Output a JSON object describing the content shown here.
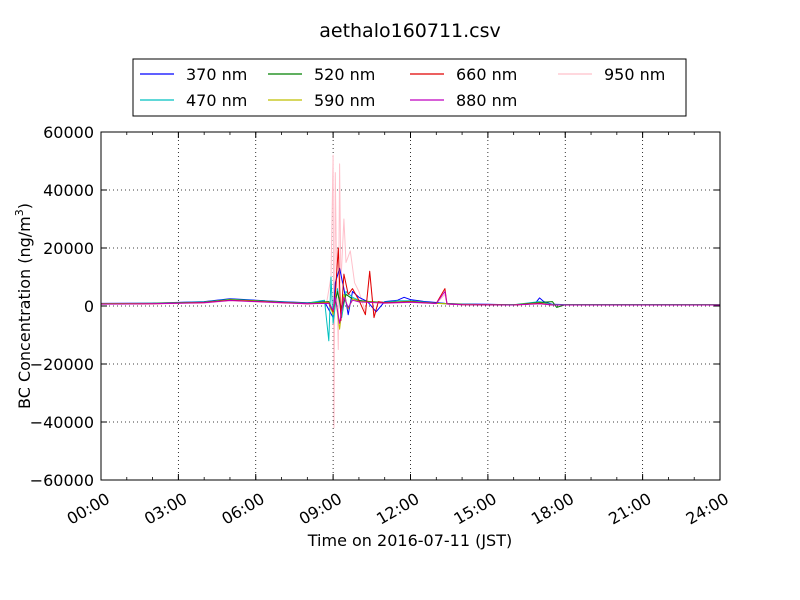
{
  "chart_data": {
    "type": "line",
    "title": "aethalo160711.csv",
    "xlabel": "Time on 2016-07-11 (JST)",
    "ylabel": "BC Concentration (ng/m",
    "ylabel_sup": "3",
    "ylabel_close": ")",
    "xlim": [
      "2016-07-11 00:00",
      "2016-07-12 00:00"
    ],
    "ylim": [
      -60000,
      60000
    ],
    "x_ticks": [
      "00:00",
      "03:00",
      "06:00",
      "09:00",
      "12:00",
      "15:00",
      "18:00",
      "21:00",
      "24:00"
    ],
    "y_ticks": [
      "60000",
      "40000",
      "20000",
      "0",
      "−20000",
      "−40000",
      "−60000"
    ],
    "grid": true,
    "legend_placement": "top-center",
    "series": [
      {
        "name": "370 nm",
        "color": "#0000ff",
        "points": [
          [
            "00:00",
            900
          ],
          [
            "02:00",
            1000
          ],
          [
            "04:00",
            1500
          ],
          [
            "05:00",
            2500
          ],
          [
            "06:00",
            2000
          ],
          [
            "07:00",
            1500
          ],
          [
            "08:00",
            1100
          ],
          [
            "08:40",
            1500
          ],
          [
            "09:00",
            -4000
          ],
          [
            "09:05",
            8000
          ],
          [
            "09:15",
            13000
          ],
          [
            "09:25",
            6000
          ],
          [
            "09:35",
            -3000
          ],
          [
            "09:45",
            5000
          ],
          [
            "10:00",
            3000
          ],
          [
            "10:20",
            1500
          ],
          [
            "10:40",
            -2000
          ],
          [
            "11:00",
            1500
          ],
          [
            "11:30",
            2000
          ],
          [
            "11:45",
            3000
          ],
          [
            "12:00",
            2200
          ],
          [
            "12:30",
            1600
          ],
          [
            "13:00",
            1200
          ],
          [
            "13:20",
            900
          ],
          [
            "14:00",
            700
          ],
          [
            "15:00",
            600
          ],
          [
            "16:00",
            400
          ],
          [
            "16:30",
            600
          ],
          [
            "16:50",
            900
          ],
          [
            "17:00",
            2800
          ],
          [
            "17:10",
            1500
          ],
          [
            "17:30",
            600
          ],
          [
            "18:00",
            500
          ],
          [
            "20:00",
            500
          ],
          [
            "22:00",
            500
          ],
          [
            "24:00",
            400
          ]
        ]
      },
      {
        "name": "470 nm",
        "color": "#00c0c0",
        "points": [
          [
            "00:00",
            800
          ],
          [
            "02:00",
            950
          ],
          [
            "04:00",
            1400
          ],
          [
            "05:00",
            2300
          ],
          [
            "06:00",
            1900
          ],
          [
            "07:00",
            1400
          ],
          [
            "08:00",
            1000
          ],
          [
            "08:40",
            2000
          ],
          [
            "08:50",
            -12000
          ],
          [
            "08:55",
            10000
          ],
          [
            "09:00",
            -6000
          ],
          [
            "09:10",
            6000
          ],
          [
            "09:20",
            -4000
          ],
          [
            "09:30",
            5000
          ],
          [
            "09:45",
            3000
          ],
          [
            "10:00",
            2000
          ],
          [
            "10:20",
            1500
          ],
          [
            "11:00",
            1300
          ],
          [
            "11:30",
            1800
          ],
          [
            "12:00",
            1800
          ],
          [
            "13:00",
            1000
          ],
          [
            "14:00",
            600
          ],
          [
            "15:00",
            500
          ],
          [
            "16:00",
            400
          ],
          [
            "17:00",
            1500
          ],
          [
            "17:30",
            500
          ],
          [
            "18:00",
            400
          ],
          [
            "20:00",
            400
          ],
          [
            "22:00",
            400
          ],
          [
            "24:00",
            400
          ]
        ]
      },
      {
        "name": "520 nm",
        "color": "#008000",
        "points": [
          [
            "00:00",
            800
          ],
          [
            "02:00",
            900
          ],
          [
            "04:00",
            1300
          ],
          [
            "05:00",
            2200
          ],
          [
            "06:00",
            1800
          ],
          [
            "07:00",
            1300
          ],
          [
            "08:00",
            900
          ],
          [
            "08:50",
            1500
          ],
          [
            "09:00",
            -2000
          ],
          [
            "09:10",
            5000
          ],
          [
            "09:20",
            -1500
          ],
          [
            "09:30",
            4000
          ],
          [
            "09:45",
            2500
          ],
          [
            "10:00",
            1800
          ],
          [
            "11:00",
            1200
          ],
          [
            "12:00",
            1600
          ],
          [
            "13:00",
            900
          ],
          [
            "14:00",
            600
          ],
          [
            "15:00",
            500
          ],
          [
            "16:00",
            400
          ],
          [
            "17:00",
            1200
          ],
          [
            "17:30",
            1500
          ],
          [
            "17:40",
            -500
          ],
          [
            "18:00",
            400
          ],
          [
            "20:00",
            400
          ],
          [
            "22:00",
            400
          ],
          [
            "24:00",
            400
          ]
        ]
      },
      {
        "name": "590 nm",
        "color": "#bfbf00",
        "points": [
          [
            "00:00",
            750
          ],
          [
            "02:00",
            850
          ],
          [
            "04:00",
            1200
          ],
          [
            "05:00",
            2100
          ],
          [
            "06:00",
            1700
          ],
          [
            "07:00",
            1200
          ],
          [
            "08:00",
            850
          ],
          [
            "08:50",
            1200
          ],
          [
            "09:00",
            -3000
          ],
          [
            "09:05",
            3500
          ],
          [
            "09:15",
            -8000
          ],
          [
            "09:25",
            4000
          ],
          [
            "09:35",
            -1000
          ],
          [
            "09:45",
            2500
          ],
          [
            "10:00",
            1600
          ],
          [
            "11:00",
            1100
          ],
          [
            "12:00",
            1500
          ],
          [
            "13:00",
            900
          ],
          [
            "14:00",
            550
          ],
          [
            "15:00",
            450
          ],
          [
            "16:00",
            380
          ],
          [
            "17:00",
            1000
          ],
          [
            "17:30",
            400
          ],
          [
            "18:00",
            380
          ],
          [
            "20:00",
            380
          ],
          [
            "22:00",
            380
          ],
          [
            "24:00",
            380
          ]
        ]
      },
      {
        "name": "660 nm",
        "color": "#e00000",
        "points": [
          [
            "00:00",
            700
          ],
          [
            "02:00",
            800
          ],
          [
            "04:00",
            1200
          ],
          [
            "05:00",
            2000
          ],
          [
            "06:00",
            1600
          ],
          [
            "07:00",
            1200
          ],
          [
            "08:00",
            800
          ],
          [
            "08:50",
            1000
          ],
          [
            "09:00",
            -2000
          ],
          [
            "09:05",
            4000
          ],
          [
            "09:12",
            20000
          ],
          [
            "09:18",
            -5000
          ],
          [
            "09:25",
            11000
          ],
          [
            "09:35",
            4000
          ],
          [
            "09:45",
            6000
          ],
          [
            "10:00",
            2000
          ],
          [
            "10:15",
            -3000
          ],
          [
            "10:25",
            12000
          ],
          [
            "10:35",
            -4000
          ],
          [
            "10:45",
            1500
          ],
          [
            "11:00",
            1100
          ],
          [
            "12:00",
            1400
          ],
          [
            "13:00",
            900
          ],
          [
            "13:20",
            6000
          ],
          [
            "13:25",
            700
          ],
          [
            "14:00",
            500
          ],
          [
            "15:00",
            400
          ],
          [
            "16:00",
            350
          ],
          [
            "17:00",
            900
          ],
          [
            "17:30",
            350
          ],
          [
            "18:00",
            350
          ],
          [
            "20:00",
            350
          ],
          [
            "22:00",
            350
          ],
          [
            "24:00",
            350
          ]
        ]
      },
      {
        "name": "880 nm",
        "color": "#bf00bf",
        "points": [
          [
            "00:00",
            650
          ],
          [
            "02:00",
            750
          ],
          [
            "04:00",
            1100
          ],
          [
            "05:00",
            1900
          ],
          [
            "06:00",
            1500
          ],
          [
            "07:00",
            1100
          ],
          [
            "08:00",
            750
          ],
          [
            "08:50",
            900
          ],
          [
            "09:00",
            -1500
          ],
          [
            "09:05",
            3000
          ],
          [
            "09:15",
            -6000
          ],
          [
            "09:25",
            3000
          ],
          [
            "09:35",
            -500
          ],
          [
            "09:45",
            2000
          ],
          [
            "10:00",
            1400
          ],
          [
            "11:00",
            1000
          ],
          [
            "12:00",
            1300
          ],
          [
            "13:00",
            850
          ],
          [
            "13:20",
            5000
          ],
          [
            "13:25",
            700
          ],
          [
            "14:00",
            450
          ],
          [
            "15:00",
            380
          ],
          [
            "16:00",
            330
          ],
          [
            "17:00",
            800
          ],
          [
            "17:30",
            330
          ],
          [
            "18:00",
            330
          ],
          [
            "20:00",
            330
          ],
          [
            "22:00",
            330
          ],
          [
            "24:00",
            330
          ]
        ]
      },
      {
        "name": "950 nm",
        "color": "#ffc0cb",
        "points": [
          [
            "00:00",
            600
          ],
          [
            "02:00",
            700
          ],
          [
            "04:00",
            1000
          ],
          [
            "05:00",
            1800
          ],
          [
            "06:00",
            1400
          ],
          [
            "07:00",
            1000
          ],
          [
            "08:00",
            700
          ],
          [
            "08:45",
            1200
          ],
          [
            "08:55",
            10000
          ],
          [
            "09:00",
            52000
          ],
          [
            "09:02",
            -42000
          ],
          [
            "09:05",
            46000
          ],
          [
            "09:08",
            10000
          ],
          [
            "09:12",
            -15000
          ],
          [
            "09:15",
            49000
          ],
          [
            "09:18",
            8000
          ],
          [
            "09:25",
            30000
          ],
          [
            "09:30",
            15000
          ],
          [
            "09:40",
            19000
          ],
          [
            "09:50",
            8000
          ],
          [
            "10:00",
            5000
          ],
          [
            "10:15",
            -2000
          ],
          [
            "10:25",
            11000
          ],
          [
            "10:35",
            -3000
          ],
          [
            "10:45",
            1200
          ],
          [
            "11:00",
            900
          ],
          [
            "12:00",
            1200
          ],
          [
            "13:00",
            800
          ],
          [
            "13:20",
            4000
          ],
          [
            "13:25",
            600
          ],
          [
            "14:00",
            400
          ],
          [
            "15:00",
            350
          ],
          [
            "16:00",
            300
          ],
          [
            "17:00",
            700
          ],
          [
            "17:30",
            300
          ],
          [
            "18:00",
            300
          ],
          [
            "20:00",
            300
          ],
          [
            "22:00",
            300
          ],
          [
            "24:00",
            300
          ]
        ]
      }
    ]
  }
}
